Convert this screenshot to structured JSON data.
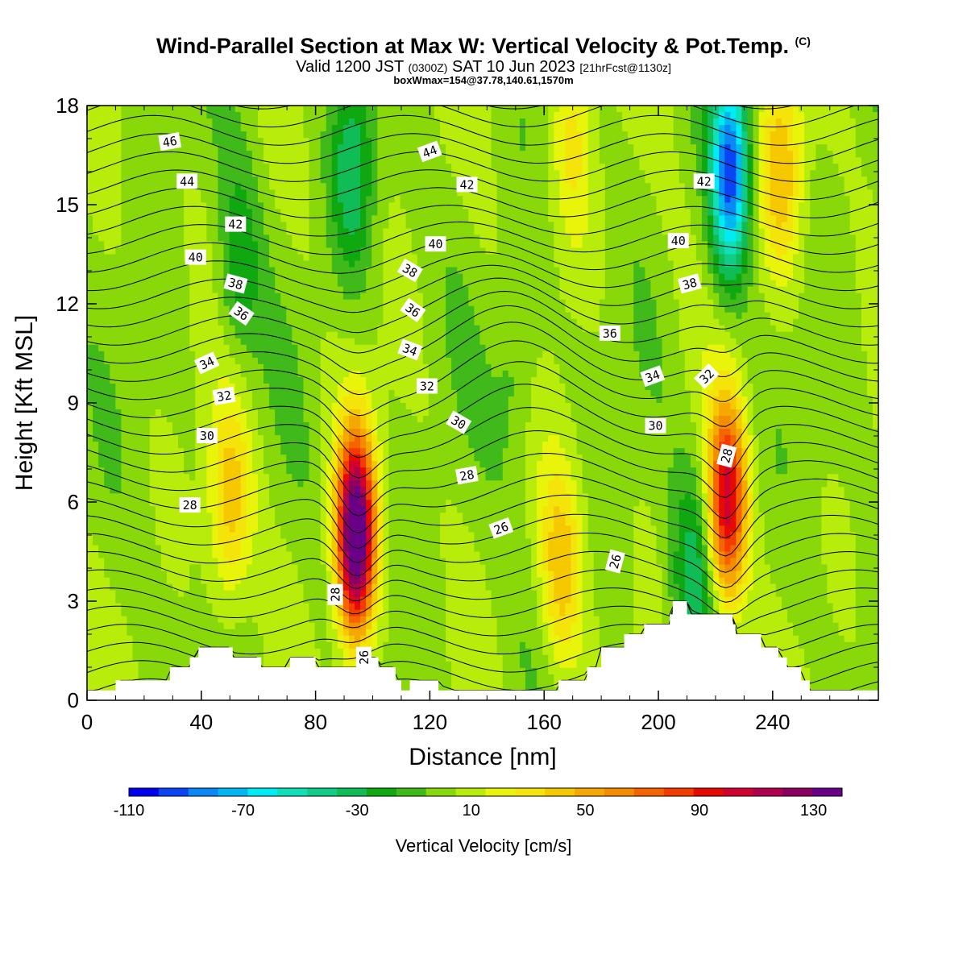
{
  "header": {
    "title": "Wind-Parallel Section at Max W: Vertical Velocity & Pot.Temp.",
    "copyright": "(C)",
    "valid_prefix": "Valid 1200 JST",
    "valid_utc": "(0300Z)",
    "valid_date": "SAT 10 Jun 2023",
    "forecast": "[21hrFcst@1130z]",
    "info": "boxWmax=154@37.78,140.61,1570m"
  },
  "chart_data": {
    "type": "heatmap",
    "xlabel": "Distance [nm]",
    "ylabel": "Height [Kft MSL]",
    "xlim": [
      0,
      277
    ],
    "ylim": [
      0,
      18
    ],
    "x_ticks": [
      0,
      40,
      80,
      120,
      160,
      200,
      240
    ],
    "y_ticks": [
      0,
      3,
      6,
      9,
      12,
      15,
      18
    ],
    "colorbar": {
      "title": "Vertical Velocity [cm/s]",
      "tick_labels": [
        "-110",
        "-70",
        "-30",
        "10",
        "50",
        "90",
        "130"
      ],
      "tick_values": [
        -110,
        -70,
        -30,
        10,
        50,
        90,
        130
      ],
      "range": [
        -110,
        140
      ],
      "colors": [
        "#0000f0",
        "#0a44f5",
        "#0a88f5",
        "#00b8f0",
        "#00ecf5",
        "#10e0b8",
        "#10cc88",
        "#10bc55",
        "#10a810",
        "#40ba1a",
        "#88d80a",
        "#b8ec0a",
        "#e8f50a",
        "#f5e40a",
        "#f5c800",
        "#f5a800",
        "#f58c00",
        "#f56400",
        "#f53c00",
        "#e60a00",
        "#d00030",
        "#b00050",
        "#8a0060",
        "#6a0088"
      ]
    },
    "updraft_cores": [
      {
        "x": 94,
        "height": 5.0,
        "w": 154
      },
      {
        "x": 224,
        "height": 6.0,
        "w": 100
      },
      {
        "x": 50,
        "height": 6.0,
        "w": 40
      },
      {
        "x": 166,
        "height": 4.0,
        "w": 40
      },
      {
        "x": 170,
        "height": 17.0,
        "w": 25
      },
      {
        "x": 243,
        "height": 16.0,
        "w": 40
      }
    ],
    "downdraft_cores": [
      {
        "x": 225,
        "height": 16.0,
        "w": -95
      },
      {
        "x": 93,
        "height": 16.0,
        "w": -35
      },
      {
        "x": 53,
        "height": 13.0,
        "w": -25
      },
      {
        "x": 212,
        "height": 3.5,
        "w": -35
      },
      {
        "x": 150,
        "height": 10.0,
        "w": -15
      }
    ],
    "theta_contour_labels": [
      "46",
      "44",
      "42",
      "40",
      "38",
      "36",
      "34",
      "32",
      "30",
      "28",
      "26"
    ],
    "terrain": [
      [
        0,
        0.3
      ],
      [
        10,
        0.3
      ],
      [
        10,
        0.6
      ],
      [
        29,
        0.6
      ],
      [
        29,
        1.0
      ],
      [
        36,
        1.0
      ],
      [
        36,
        1.3
      ],
      [
        39,
        1.3
      ],
      [
        39,
        1.6
      ],
      [
        51,
        1.6
      ],
      [
        51,
        1.3
      ],
      [
        61,
        1.3
      ],
      [
        61,
        1.0
      ],
      [
        71,
        1.0
      ],
      [
        71,
        1.3
      ],
      [
        80,
        1.3
      ],
      [
        80,
        1.0
      ],
      [
        96,
        1.0
      ],
      [
        96,
        1.3
      ],
      [
        102,
        1.3
      ],
      [
        102,
        1.0
      ],
      [
        108,
        1.0
      ],
      [
        108,
        0.6
      ],
      [
        110,
        0.6
      ],
      [
        110,
        0.3
      ],
      [
        113,
        0.3
      ],
      [
        113,
        0.6
      ],
      [
        123,
        0.6
      ],
      [
        123,
        0.3
      ],
      [
        165,
        0.3
      ],
      [
        165,
        0.6
      ],
      [
        175,
        0.6
      ],
      [
        175,
        1.0
      ],
      [
        180,
        1.0
      ],
      [
        180,
        1.6
      ],
      [
        188,
        1.6
      ],
      [
        188,
        2.0
      ],
      [
        195,
        2.0
      ],
      [
        195,
        2.3
      ],
      [
        204,
        2.3
      ],
      [
        204,
        2.6
      ],
      [
        205,
        2.6
      ],
      [
        205,
        3.0
      ],
      [
        210,
        3.0
      ],
      [
        210,
        2.6
      ],
      [
        226,
        2.6
      ],
      [
        226,
        2.3
      ],
      [
        227,
        2.3
      ],
      [
        227,
        2.0
      ],
      [
        236,
        2.0
      ],
      [
        236,
        1.6
      ],
      [
        242,
        1.6
      ],
      [
        242,
        1.3
      ],
      [
        245,
        1.3
      ],
      [
        245,
        1.0
      ],
      [
        250,
        1.0
      ],
      [
        250,
        0.6
      ],
      [
        253,
        0.6
      ],
      [
        253,
        0.3
      ],
      [
        277,
        0.3
      ]
    ]
  }
}
